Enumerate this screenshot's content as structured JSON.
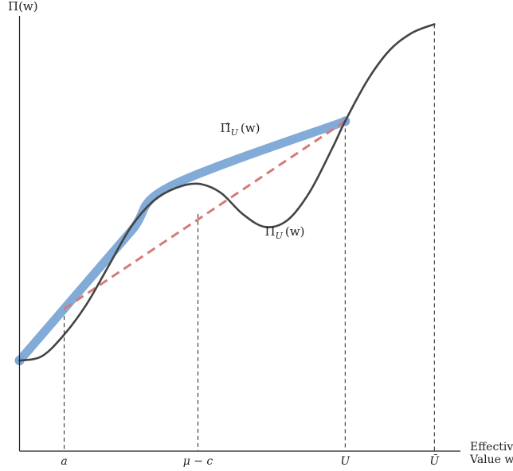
{
  "chart_data": {
    "type": "line",
    "title": "",
    "ylabel": "Π(w)",
    "xlabel": [
      "Effective",
      "Value w"
    ],
    "xlim": [
      0,
      10
    ],
    "ylim": [
      0,
      10
    ],
    "ticks": [
      {
        "label": "a",
        "x": 1.0
      },
      {
        "label": "μ − c",
        "x": 4.0
      },
      {
        "label": "U",
        "x": 7.3
      },
      {
        "label": "Ū",
        "x": 9.3
      }
    ],
    "guides": [
      {
        "x": 1.0,
        "y": 3.3
      },
      {
        "x": 4.0,
        "y": 5.5
      },
      {
        "x": 7.3,
        "y": 7.65
      },
      {
        "x": 9.3,
        "y": 9.9
      }
    ],
    "series": [
      {
        "name": "Π̂_U(w)",
        "color": "#7ba7d6",
        "style": "thick",
        "x": [
          0.0,
          1.0,
          2.5,
          3.4,
          7.3
        ],
        "y": [
          2.1,
          3.3,
          5.1,
          6.15,
          7.65
        ]
      },
      {
        "name": "Π_U(w)",
        "color": "#444444",
        "style": "solid",
        "x": [
          0.0,
          0.5,
          1.0,
          1.5,
          2.0,
          2.5,
          3.0,
          3.5,
          4.0,
          4.5,
          5.0,
          5.5,
          6.0,
          6.5,
          7.0,
          7.3,
          7.8,
          8.3,
          8.8,
          9.3
        ],
        "y": [
          2.1,
          2.2,
          2.7,
          3.4,
          4.3,
          5.2,
          5.8,
          6.1,
          6.2,
          6.0,
          5.5,
          5.2,
          5.35,
          6.0,
          7.0,
          7.65,
          8.6,
          9.3,
          9.7,
          9.9
        ]
      },
      {
        "name": "chord",
        "color": "#d67a7a",
        "style": "dashed",
        "x": [
          1.0,
          7.3
        ],
        "y": [
          3.3,
          7.65
        ]
      }
    ],
    "annotations": [
      {
        "text": "Π̂_U(w)",
        "base": "Π̂",
        "sub": "U",
        "arg": "(w)",
        "x": 4.5,
        "y": 7.4
      },
      {
        "text": "Π_U(w)",
        "base": "Π",
        "sub": "U",
        "arg": "(w)",
        "x": 5.5,
        "y": 5.0
      }
    ],
    "grid": false,
    "legend": "none"
  }
}
